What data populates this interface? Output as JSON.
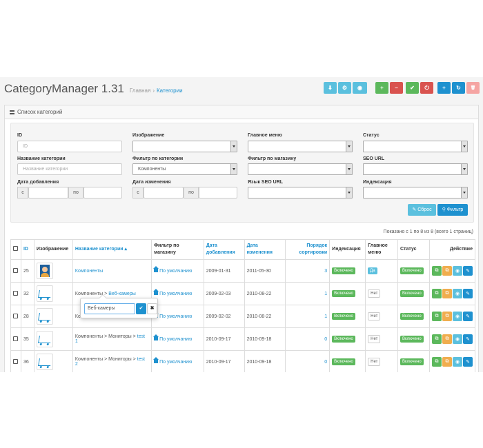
{
  "app": {
    "title": "CategoryManager 1.31"
  },
  "breadcrumb": {
    "home": "Главная",
    "current": "Категории"
  },
  "toolbar": {
    "buttons": [
      {
        "name": "download",
        "icon": "⬇",
        "color": "#5bc0de"
      },
      {
        "name": "settings",
        "icon": "⚙",
        "color": "#5bc0de"
      },
      {
        "name": "view",
        "icon": "◉",
        "color": "#5bc0de"
      },
      {
        "name": "expand",
        "icon": "+",
        "color": "#5cb85c"
      },
      {
        "name": "collapse",
        "icon": "−",
        "color": "#d9534f"
      },
      {
        "name": "enable",
        "icon": "✔",
        "color": "#5cb85c"
      },
      {
        "name": "disable",
        "icon": "⏻",
        "color": "#d9534f"
      },
      {
        "name": "add",
        "icon": "+",
        "color": "#1e91cf"
      },
      {
        "name": "refresh",
        "icon": "↻",
        "color": "#1e91cf"
      },
      {
        "name": "delete",
        "icon": "🗑",
        "color": "#f5a5a3"
      }
    ]
  },
  "panel": {
    "title": "Список категорий"
  },
  "filter": {
    "id_label": "ID",
    "id_placeholder": "ID",
    "image_label": "Изображение",
    "image_value": "",
    "menu_label": "Главное меню",
    "menu_value": "",
    "status_label": "Статус",
    "status_value": "",
    "name_label": "Название категории",
    "name_placeholder": "Название категории",
    "catfilter_label": "Фильтр по категории",
    "catfilter_value": "Компоненты",
    "store_label": "Фильтр по магазину",
    "store_value": "",
    "seo_label": "SEO URL",
    "seo_value": "",
    "added_label": "Дата добавления",
    "changed_label": "Дата изменения",
    "from": "с",
    "to": "по",
    "seolang_label": "Язык SEO URL",
    "seolang_value": "",
    "index_label": "Индексация",
    "index_value": "",
    "reset_button": "Сброс",
    "filter_button": "Фильтр"
  },
  "pagination_text": "Показано с 1 по 8 из 8 (всего 1 страниц)",
  "table": {
    "headers": {
      "id": "ID",
      "image": "Изображение",
      "name": "Название категории ▴",
      "filter_l1": "Фильтр по",
      "filter_l2": "магазину",
      "added_l1": "Дата",
      "added_l2": "добавления",
      "changed_l1": "Дата",
      "changed_l2": "изменения",
      "sort_l1": "Порядок",
      "sort_l2": "сортировки",
      "index": "Индексация",
      "menu_l1": "Главное",
      "menu_l2": "меню",
      "status": "Статус",
      "actions": "Действие"
    },
    "rows": [
      {
        "id": "25",
        "thumb": "avatar",
        "path": "",
        "name": "Компоненты",
        "name2": "",
        "store": "По умолчанию",
        "added": "2009-01-31",
        "changed": "2011-05-30",
        "sort": "3",
        "index": "Включено",
        "menu": "Да",
        "status": "Включено"
      },
      {
        "id": "32",
        "thumb": "cart",
        "path": "Компоненты > ",
        "name": "Веб-камеры",
        "name2": "",
        "store": "По умолчанию",
        "added": "2009-02-03",
        "changed": "2010-08-22",
        "sort": "1",
        "index": "Включено",
        "menu": "Нет",
        "status": "Включено"
      },
      {
        "id": "28",
        "thumb": "cart",
        "path": "Комп",
        "name": "",
        "name2": "",
        "store": "По умолчанию",
        "added": "2009-02-02",
        "changed": "2010-08-22",
        "sort": "1",
        "index": "Включено",
        "menu": "Нет",
        "status": "Включено"
      },
      {
        "id": "35",
        "thumb": "cart",
        "path": "Компоненты > Мониторы > ",
        "name": "test",
        "name2": "1",
        "store": "По умолчанию",
        "added": "2010-09-17",
        "changed": "2010-09-18",
        "sort": "0",
        "index": "Включено",
        "menu": "Нет",
        "status": "Включено"
      },
      {
        "id": "36",
        "thumb": "cart",
        "path": "Компоненты > Мониторы > ",
        "name": "test",
        "name2": "2",
        "store": "По умолчанию",
        "added": "2010-09-17",
        "changed": "2010-09-18",
        "sort": "0",
        "index": "Включено",
        "menu": "Нет",
        "status": "Включено"
      }
    ]
  },
  "popover": {
    "input_value": "Веб-камеры",
    "ok": "✔",
    "cancel": "✖"
  }
}
